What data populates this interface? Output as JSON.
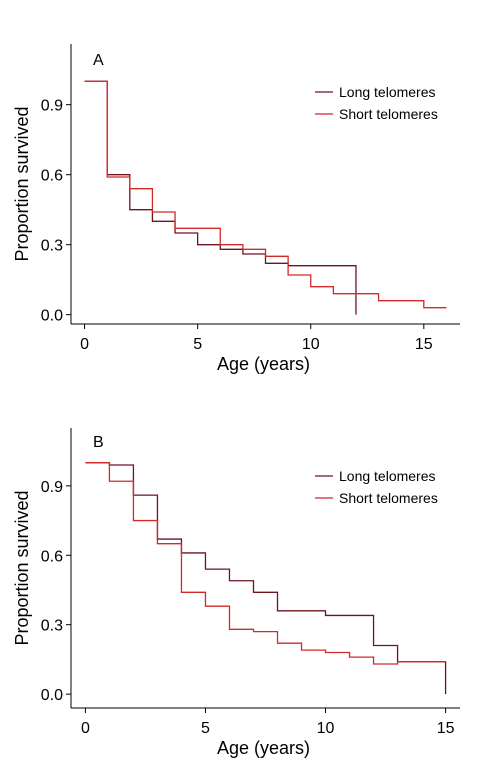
{
  "chart_data": [
    {
      "type": "line",
      "panel_label": "A",
      "xlabel": "Age (years)",
      "ylabel": "Proportion survived",
      "xlim": [
        -0.6,
        16.6
      ],
      "ylim": [
        -0.04,
        1.16
      ],
      "xticks": [
        0,
        5,
        10,
        15
      ],
      "xtick_labels": [
        "0",
        "5",
        "10",
        "15"
      ],
      "yticks": [
        0.0,
        0.3,
        0.6,
        0.9
      ],
      "ytick_labels": [
        "0.0",
        "0.3",
        "0.6",
        "0.9"
      ],
      "legend_position": "top-right",
      "grid": false,
      "series": [
        {
          "name": "Long telomeres",
          "color": "#6e1420",
          "steps": [
            [
              0,
              1.0
            ],
            [
              1,
              0.6
            ],
            [
              2,
              0.45
            ],
            [
              3,
              0.4
            ],
            [
              4,
              0.35
            ],
            [
              5,
              0.3
            ],
            [
              6,
              0.28
            ],
            [
              7,
              0.26
            ],
            [
              8,
              0.22
            ],
            [
              9,
              0.21
            ],
            [
              10,
              0.21
            ],
            [
              11,
              0.21
            ],
            [
              12,
              0.0
            ]
          ]
        },
        {
          "name": "Short telomeres",
          "color": "#d22a2a",
          "steps": [
            [
              0,
              1.0
            ],
            [
              1,
              0.59
            ],
            [
              2,
              0.54
            ],
            [
              3,
              0.44
            ],
            [
              4,
              0.37
            ],
            [
              5,
              0.37
            ],
            [
              6,
              0.3
            ],
            [
              7,
              0.28
            ],
            [
              8,
              0.25
            ],
            [
              9,
              0.17
            ],
            [
              10,
              0.12
            ],
            [
              11,
              0.09
            ],
            [
              12,
              0.09
            ],
            [
              13,
              0.06
            ],
            [
              14,
              0.06
            ],
            [
              15,
              0.03
            ],
            [
              16,
              0.03
            ]
          ]
        }
      ]
    },
    {
      "type": "line",
      "panel_label": "B",
      "xlabel": "Age (years)",
      "ylabel": "Proportion survived",
      "xlim": [
        -0.6,
        15.6
      ],
      "ylim": [
        -0.06,
        1.15
      ],
      "xticks": [
        0,
        5,
        10,
        15
      ],
      "xtick_labels": [
        "0",
        "5",
        "10",
        "15"
      ],
      "yticks": [
        0.0,
        0.3,
        0.6,
        0.9
      ],
      "ytick_labels": [
        "0.0",
        "0.3",
        "0.6",
        "0.9"
      ],
      "legend_position": "top-right",
      "grid": false,
      "series": [
        {
          "name": "Long telomeres",
          "color": "#6e1420",
          "steps": [
            [
              0,
              1.0
            ],
            [
              1,
              0.99
            ],
            [
              2,
              0.86
            ],
            [
              3,
              0.67
            ],
            [
              4,
              0.61
            ],
            [
              5,
              0.54
            ],
            [
              6,
              0.49
            ],
            [
              7,
              0.44
            ],
            [
              8,
              0.36
            ],
            [
              9,
              0.36
            ],
            [
              10,
              0.34
            ],
            [
              11,
              0.34
            ],
            [
              12,
              0.21
            ],
            [
              13,
              0.14
            ],
            [
              14,
              0.14
            ],
            [
              15,
              0.0
            ]
          ]
        },
        {
          "name": "Short telomeres",
          "color": "#d22a2a",
          "steps": [
            [
              0,
              1.0
            ],
            [
              1,
              0.92
            ],
            [
              2,
              0.75
            ],
            [
              3,
              0.65
            ],
            [
              4,
              0.44
            ],
            [
              5,
              0.38
            ],
            [
              6,
              0.28
            ],
            [
              7,
              0.27
            ],
            [
              8,
              0.22
            ],
            [
              9,
              0.19
            ],
            [
              10,
              0.18
            ],
            [
              11,
              0.16
            ],
            [
              12,
              0.13
            ],
            [
              13,
              0.14
            ],
            [
              14,
              0.14
            ],
            [
              15,
              0.14
            ]
          ]
        }
      ]
    }
  ]
}
